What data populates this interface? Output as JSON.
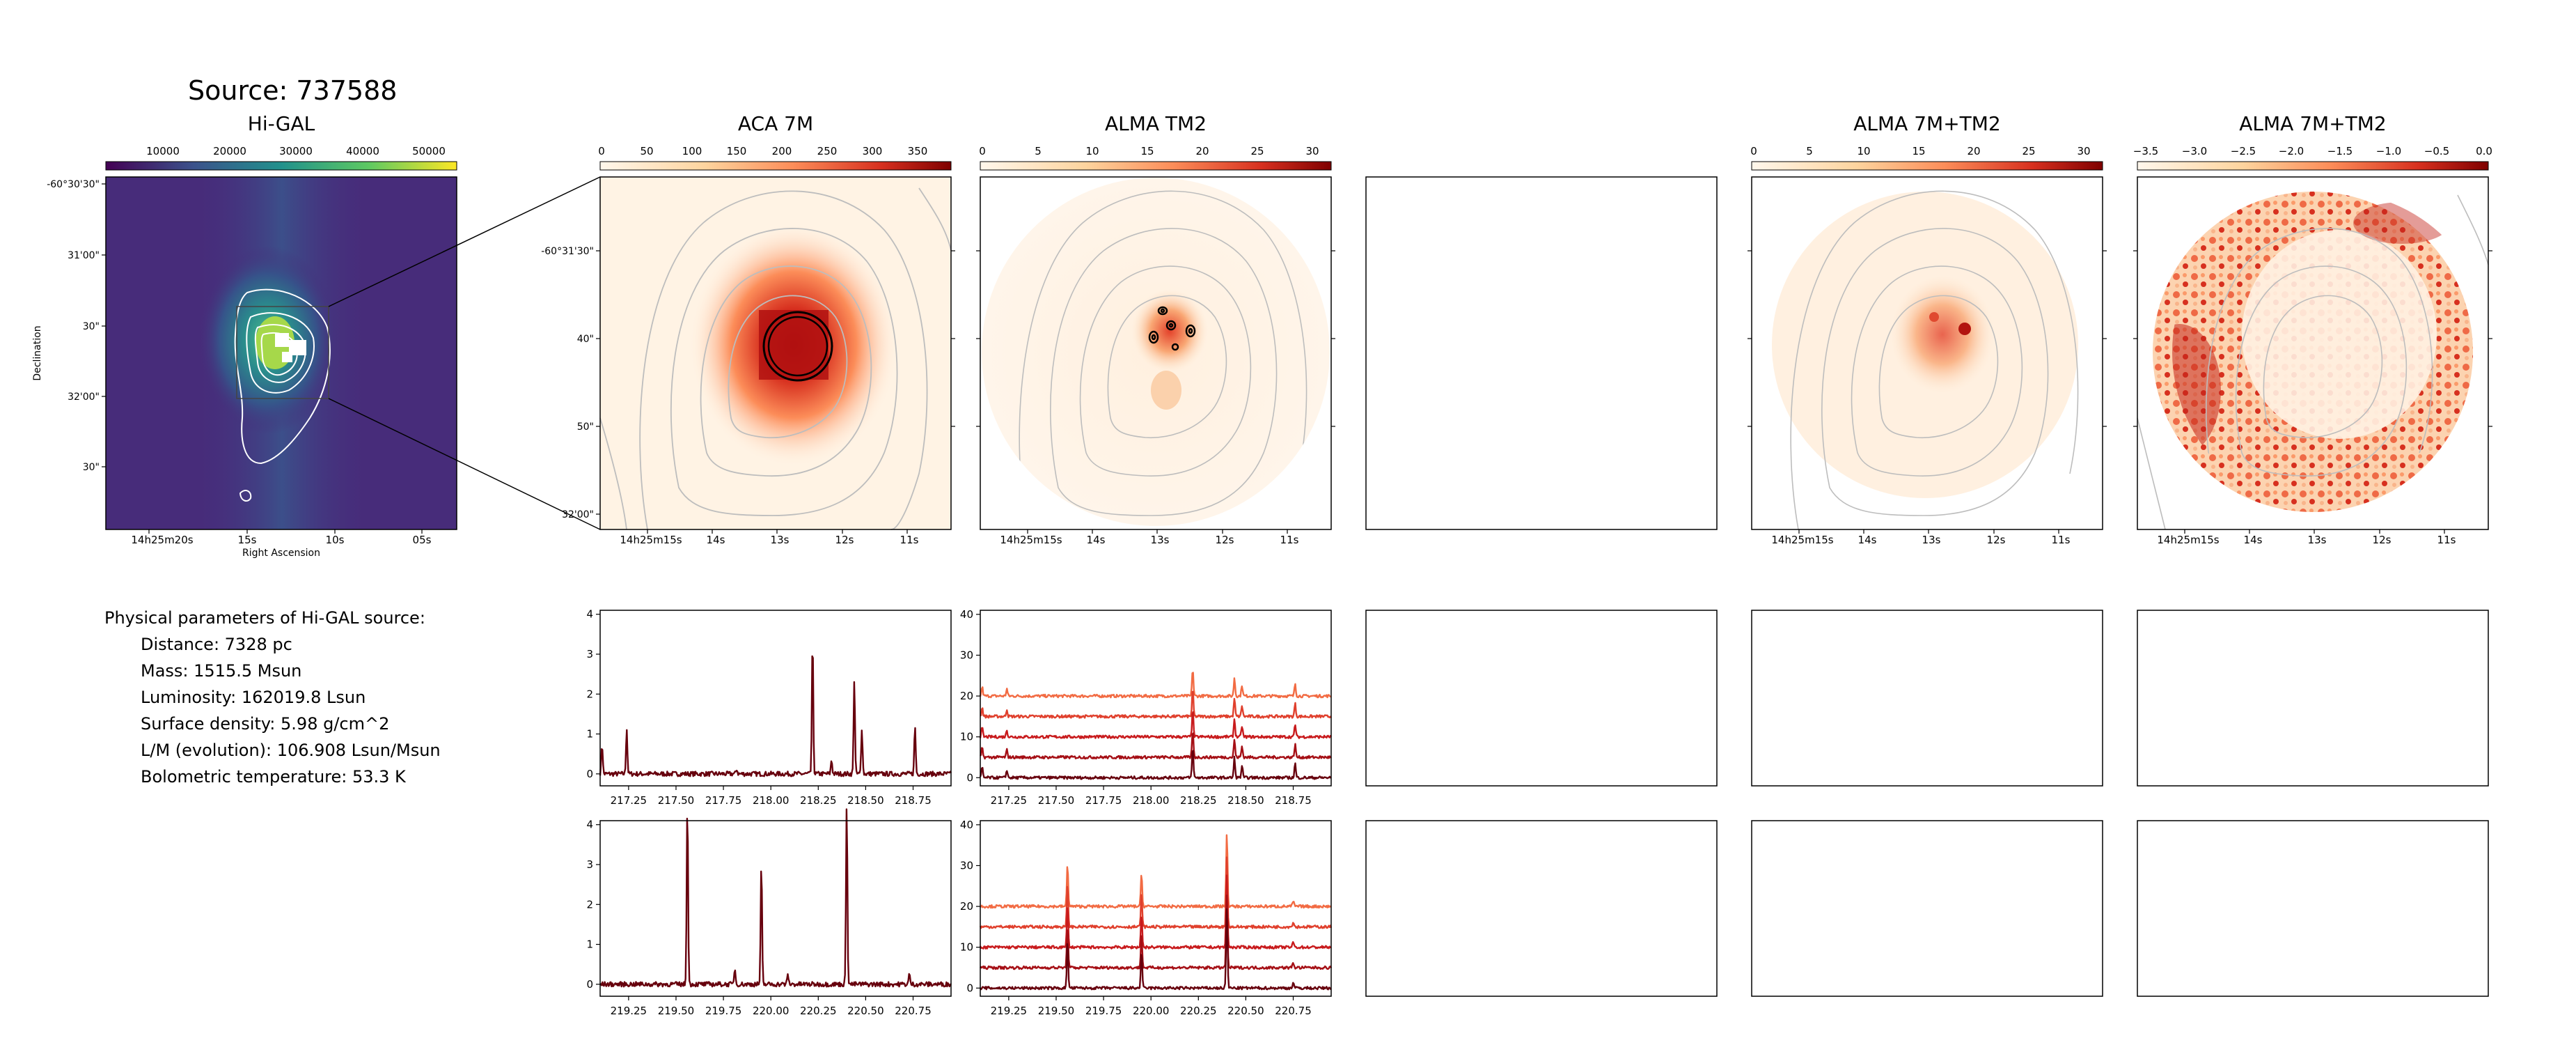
{
  "source_title": "Source: 737588",
  "colors": {
    "axis": "#000000",
    "contour_gray": "#bdbdbd",
    "higal_contour": "#ffffff"
  },
  "panels": {
    "higal": {
      "title": "Hi-GAL",
      "colorbar": {
        "cmap": "viridis",
        "ticks": [
          "10000",
          "20000",
          "30000",
          "40000",
          "50000"
        ]
      },
      "xlabel": "Right Ascension",
      "ylabel": "Declination",
      "xticks": [
        "14h25m20s",
        "15s",
        "10s",
        "05s"
      ],
      "yticks": [
        "-60°30'30\"",
        "31'00\"",
        "30\"",
        "32'00\"",
        "30\""
      ]
    },
    "aca": {
      "title": "ACA 7M",
      "colorbar": {
        "cmap": "OrRd",
        "ticks": [
          "0",
          "50",
          "100",
          "150",
          "200",
          "250",
          "300",
          "350"
        ]
      },
      "xticks": [
        "14h25m15s",
        "14s",
        "13s",
        "12s",
        "11s"
      ],
      "yticks": [
        "-60°31'30\"",
        "40\"",
        "50\"",
        "32'00\""
      ]
    },
    "tm2": {
      "title": "ALMA TM2",
      "colorbar": {
        "cmap": "OrRd",
        "ticks": [
          "0",
          "5",
          "10",
          "15",
          "20",
          "25",
          "30"
        ]
      },
      "xticks": [
        "14h25m15s",
        "14s",
        "13s",
        "12s",
        "11s"
      ]
    },
    "combo": {
      "title": "ALMA 7M+TM2",
      "colorbar": {
        "cmap": "OrRd",
        "ticks": [
          "0",
          "5",
          "10",
          "15",
          "20",
          "25",
          "30"
        ]
      },
      "xticks": [
        "14h25m15s",
        "14s",
        "13s",
        "12s",
        "11s"
      ]
    },
    "combo_log": {
      "title": "ALMA 7M+TM2",
      "colorbar": {
        "cmap": "OrRd",
        "ticks": [
          "−3.5",
          "−3.0",
          "−2.5",
          "−2.0",
          "−1.5",
          "−1.0",
          "−0.5",
          "0.0"
        ]
      },
      "xticks": [
        "14h25m15s",
        "14s",
        "13s",
        "12s",
        "11s"
      ]
    }
  },
  "params": {
    "heading": "Physical parameters of Hi-GAL source:",
    "items": [
      "Distance: 7328 pc",
      "Mass: 1515.5 Msun",
      "Luminosity: 162019.8 Lsun",
      "Surface density: 5.98 g/cm^2",
      "L/M (evolution): 106.908 Lsun/Msun",
      "Bolometric temperature: 53.3 K"
    ]
  },
  "chart_data": [
    {
      "type": "line",
      "panel": "aca-spectrum-1",
      "x_range": [
        217.1,
        218.95
      ],
      "xticks": [
        "217.25",
        "217.50",
        "217.75",
        "218.00",
        "218.25",
        "218.50",
        "218.75"
      ],
      "ylim": [
        -0.3,
        4.1
      ],
      "yticks": [
        "0",
        "1",
        "2",
        "3",
        "4"
      ],
      "baseline": 0,
      "noise": 0.06,
      "peaks": [
        [
          217.11,
          0.75
        ],
        [
          217.24,
          1.15
        ],
        [
          217.82,
          0.12
        ],
        [
          218.22,
          3.35
        ],
        [
          218.32,
          0.35
        ],
        [
          218.44,
          2.4
        ],
        [
          218.48,
          1.15
        ],
        [
          218.76,
          1.2
        ]
      ],
      "series": [
        {
          "color": "#67000d",
          "offset": 0
        }
      ]
    },
    {
      "type": "line",
      "panel": "tm2-spectrum-1",
      "x_range": [
        217.1,
        218.95
      ],
      "xticks": [
        "217.25",
        "217.50",
        "217.75",
        "218.00",
        "218.25",
        "218.50",
        "218.75"
      ],
      "ylim": [
        -2,
        41
      ],
      "yticks": [
        "0",
        "10",
        "20",
        "30",
        "40"
      ],
      "noise": 0.35,
      "peaks": [
        [
          217.11,
          2.5
        ],
        [
          217.24,
          2.0
        ],
        [
          218.22,
          7.5
        ],
        [
          218.44,
          5.0
        ],
        [
          218.48,
          3.0
        ],
        [
          218.76,
          3.5
        ]
      ],
      "series": [
        {
          "color": "#f26b43",
          "offset": 20
        },
        {
          "color": "#e0402d",
          "offset": 15
        },
        {
          "color": "#c81b1d",
          "offset": 10
        },
        {
          "color": "#a50f15",
          "offset": 5
        },
        {
          "color": "#67000d",
          "offset": 0
        }
      ]
    },
    {
      "type": "line",
      "panel": "aca-spectrum-2",
      "x_range": [
        219.1,
        220.95
      ],
      "xticks": [
        "219.25",
        "219.50",
        "219.75",
        "220.00",
        "220.25",
        "220.50",
        "220.75"
      ],
      "ylim": [
        -0.3,
        4.1
      ],
      "yticks": [
        "0",
        "1",
        "2",
        "3",
        "4"
      ],
      "noise": 0.06,
      "peaks": [
        [
          219.56,
          4.6
        ],
        [
          219.81,
          0.4
        ],
        [
          219.95,
          3.0
        ],
        [
          220.09,
          0.25
        ],
        [
          220.4,
          4.6
        ],
        [
          220.73,
          0.25
        ]
      ],
      "series": [
        {
          "color": "#67000d",
          "offset": 0
        }
      ]
    },
    {
      "type": "line",
      "panel": "tm2-spectrum-2",
      "x_range": [
        219.1,
        220.95
      ],
      "xticks": [
        "219.25",
        "219.50",
        "219.75",
        "220.00",
        "220.25",
        "220.50",
        "220.75"
      ],
      "ylim": [
        -2,
        41
      ],
      "yticks": [
        "0",
        "10",
        "20",
        "30",
        "40"
      ],
      "noise": 0.35,
      "peaks": [
        [
          219.56,
          11.5
        ],
        [
          219.95,
          9.0
        ],
        [
          220.4,
          20.0
        ],
        [
          220.75,
          1.5
        ]
      ],
      "series": [
        {
          "color": "#f26b43",
          "offset": 20
        },
        {
          "color": "#e0402d",
          "offset": 15
        },
        {
          "color": "#c81b1d",
          "offset": 10
        },
        {
          "color": "#a50f15",
          "offset": 5
        },
        {
          "color": "#67000d",
          "offset": 0
        }
      ]
    }
  ]
}
